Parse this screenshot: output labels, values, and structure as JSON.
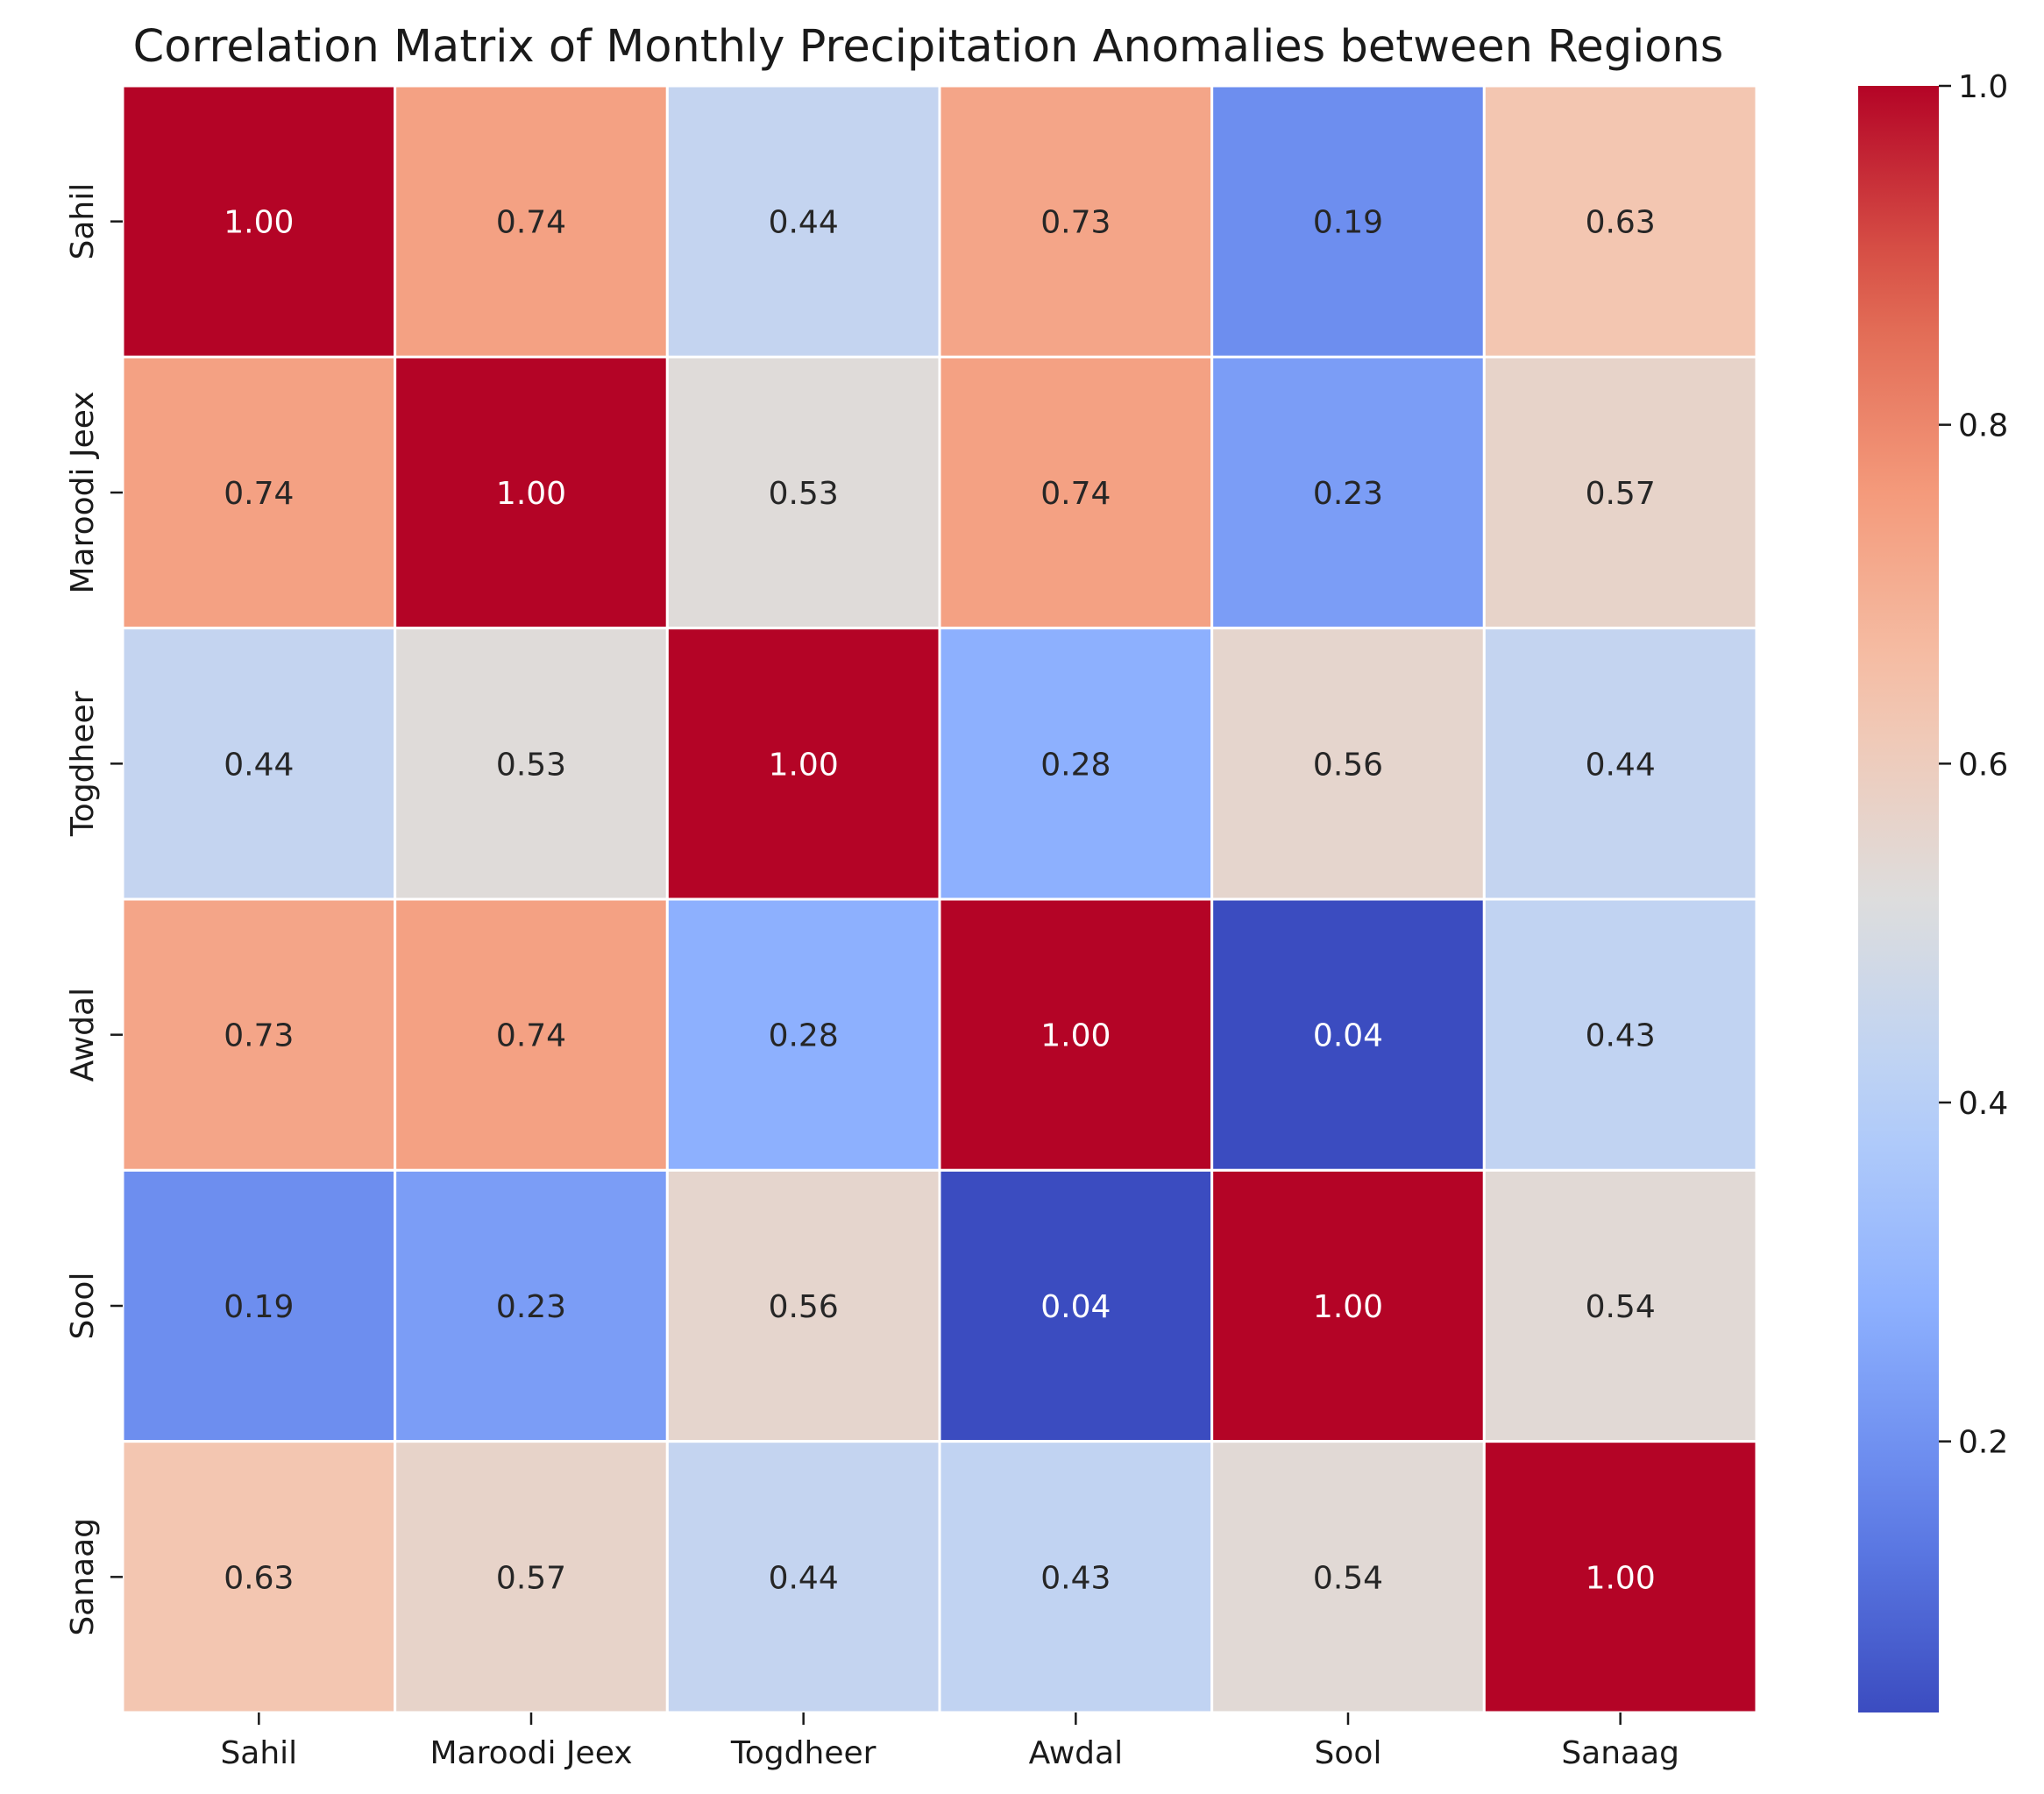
{
  "chart_data": {
    "type": "heatmap",
    "title": "Correlation Matrix of Monthly Precipitation Anomalies between Regions",
    "xlabel": "",
    "ylabel": "",
    "x_categories": [
      "Sahil",
      "Maroodi Jeex",
      "Togdheer",
      "Awdal",
      "Sool",
      "Sanaag"
    ],
    "y_categories": [
      "Sahil",
      "Maroodi Jeex",
      "Togdheer",
      "Awdal",
      "Sool",
      "Sanaag"
    ],
    "values": [
      [
        1.0,
        0.74,
        0.44,
        0.73,
        0.19,
        0.63
      ],
      [
        0.74,
        1.0,
        0.53,
        0.74,
        0.23,
        0.57
      ],
      [
        0.44,
        0.53,
        1.0,
        0.28,
        0.56,
        0.44
      ],
      [
        0.73,
        0.74,
        0.28,
        1.0,
        0.04,
        0.43
      ],
      [
        0.19,
        0.23,
        0.56,
        0.04,
        1.0,
        0.54
      ],
      [
        0.63,
        0.57,
        0.44,
        0.43,
        0.54,
        1.0
      ]
    ],
    "value_format": "0.00",
    "colormap": "coolwarm",
    "color_range": [
      0.04,
      1.0
    ],
    "colorbar_ticks": [
      0.2,
      0.4,
      0.6,
      0.8,
      1.0
    ],
    "colorbar_tick_labels": [
      "0.2",
      "0.4",
      "0.6",
      "0.8",
      "1.0"
    ],
    "colorbar_position": "right",
    "grid": false,
    "cell_separator_color": "#ffffff"
  }
}
